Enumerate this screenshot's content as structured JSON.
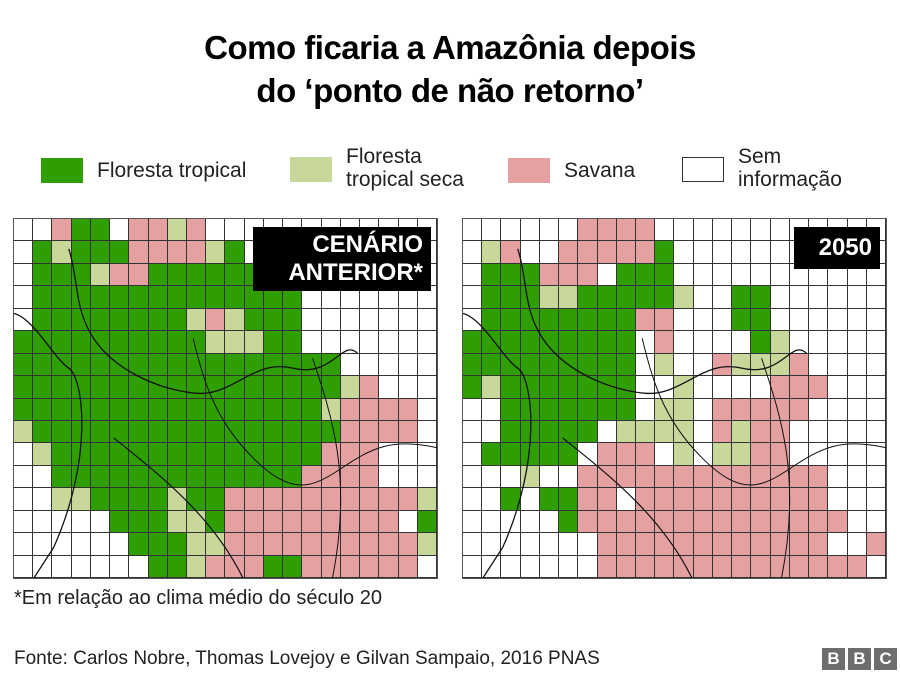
{
  "title": {
    "line1": "Como ficaria a Amazônia depois",
    "line2": "do ‘ponto de não retorno’"
  },
  "legend": [
    {
      "key": "G",
      "label_line1": "Floresta tropical",
      "label_line2": "",
      "color": "#2e9e00"
    },
    {
      "key": "F",
      "label_line1": "Floresta",
      "label_line2": "tropical seca",
      "color": "#c8d79a"
    },
    {
      "key": "S",
      "label_line1": "Savana",
      "label_line2": "",
      "color": "#e5a1a1"
    },
    {
      "key": "W",
      "label_line1": "Sem",
      "label_line2": "informação",
      "color": "#ffffff"
    }
  ],
  "maps": [
    {
      "badge_line1": "CENÁRIO",
      "badge_line2": "ANTERIOR*",
      "grid": [
        "WWSGGWSSFSWWWWWWWWWWWW",
        "WGFGGGSSSSFGWWWWWWWWWW",
        "WGGGFSSGGGGGGWWWWWWWWW",
        "WGGGGGGGGGGGGGGWWWWWWW",
        "WGGGGGGGGFSFGGGWWWWWWW",
        "GGGGGGGGGGFFFGGWWWWWWW",
        "GGGGGGGGGGGGGGGGGWWWWW",
        "GGGGGGGGGGGGGGGGGFSWWW",
        "GGGGGGGGGGGGGGGGFSSSSW",
        "FGGGGGGGGGGGGGGGGSSSSW",
        "WFGGGGGGGGGGGGGGSSSWWW",
        "WWGGGGGGGGGGGGGSSSSWWW",
        "WWFFGGGGFGGSSSSSSSSSSF",
        "WWWWWGGGFFGSSSSSSSSSWG",
        "WWWWWWGGGFFSSSSSSSSSSF",
        "WWWWWWWGGFSSSGGSSSSSSW"
      ]
    },
    {
      "badge_line1": "2050",
      "badge_line2": "",
      "grid": [
        "WWWWWWSSSSWWWWWWWWWWWW",
        "WFSWWSSSSSGWWWWWWWWWWW",
        "WGGGSSSWGGGWWWWWWWWWWW",
        "WGGGFFGGGGGFWWGGWWWWWW",
        "WGGGGGGGGSSWWWGGWWWWWW",
        "GGGGGGGGGWSWWWWGFWWWWW",
        "GGGGGGGGGWFWWSFFFSWWWW",
        "GFGGGGGGGWWFWWWWSSSWWW",
        "WWGGGGGGGWFFWSSSSSWWWW",
        "WWGGGGGWFFFFWSFSSWWWWW",
        "WGGGGGWSSSWFWFFSSWWWWW",
        "WWWFWWSSSSSSSSSSSSSWWW",
        "WWGWGGSSWSSSSSSSSSSWWW",
        "WWWWWGSSSSSSSSSSSSSSWW",
        "WWWWWWWSSSSSSSSSSSSWWS",
        "WWWWWWWSSSSSSSSSSSSSSW"
      ]
    }
  ],
  "footnote": "*Em relação ao clima médio do século 20",
  "source": "Fonte: Carlos Nobre, Thomas Lovejoy e Gilvan Sampaio, 2016 PNAS",
  "logo": [
    "B",
    "B",
    "C"
  ]
}
